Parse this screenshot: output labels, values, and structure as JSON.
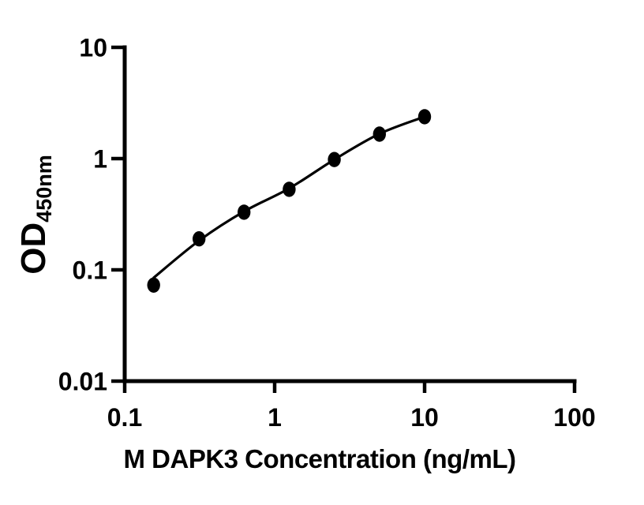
{
  "figure": {
    "background_color": "#ffffff",
    "ink_color": "#000000"
  },
  "chart_data": {
    "type": "scatter",
    "title": "",
    "xlabel": "M DAPK3 Concentration (ng/mL)",
    "ylabel_main": "OD",
    "ylabel_sub": "450nm",
    "x_scale": "log10",
    "y_scale": "log10",
    "xlim": [
      0.1,
      100
    ],
    "ylim": [
      0.01,
      10
    ],
    "grid": false,
    "legend": false,
    "x_ticks": [
      {
        "value": 0.1,
        "label": "0.1"
      },
      {
        "value": 1,
        "label": "1"
      },
      {
        "value": 10,
        "label": "10"
      },
      {
        "value": 100,
        "label": "100"
      }
    ],
    "y_ticks": [
      {
        "value": 10,
        "label": "10"
      },
      {
        "value": 1,
        "label": "1"
      },
      {
        "value": 0.1,
        "label": "0.1"
      },
      {
        "value": 0.01,
        "label": "0.01"
      }
    ],
    "series": [
      {
        "name": "M DAPK3 standard points",
        "marker": "filled-circle",
        "color": "#000000",
        "x": [
          0.156,
          0.313,
          0.625,
          1.25,
          2.5,
          5,
          10
        ],
        "y": [
          0.073,
          0.19,
          0.33,
          0.53,
          0.98,
          1.66,
          2.38
        ]
      }
    ],
    "fit_curve": {
      "name": "4PL fit curve",
      "color": "#000000",
      "x": [
        0.156,
        0.313,
        0.625,
        1.25,
        2.5,
        5,
        10
      ],
      "y": [
        0.085,
        0.183,
        0.335,
        0.54,
        0.98,
        1.67,
        2.38
      ]
    }
  }
}
